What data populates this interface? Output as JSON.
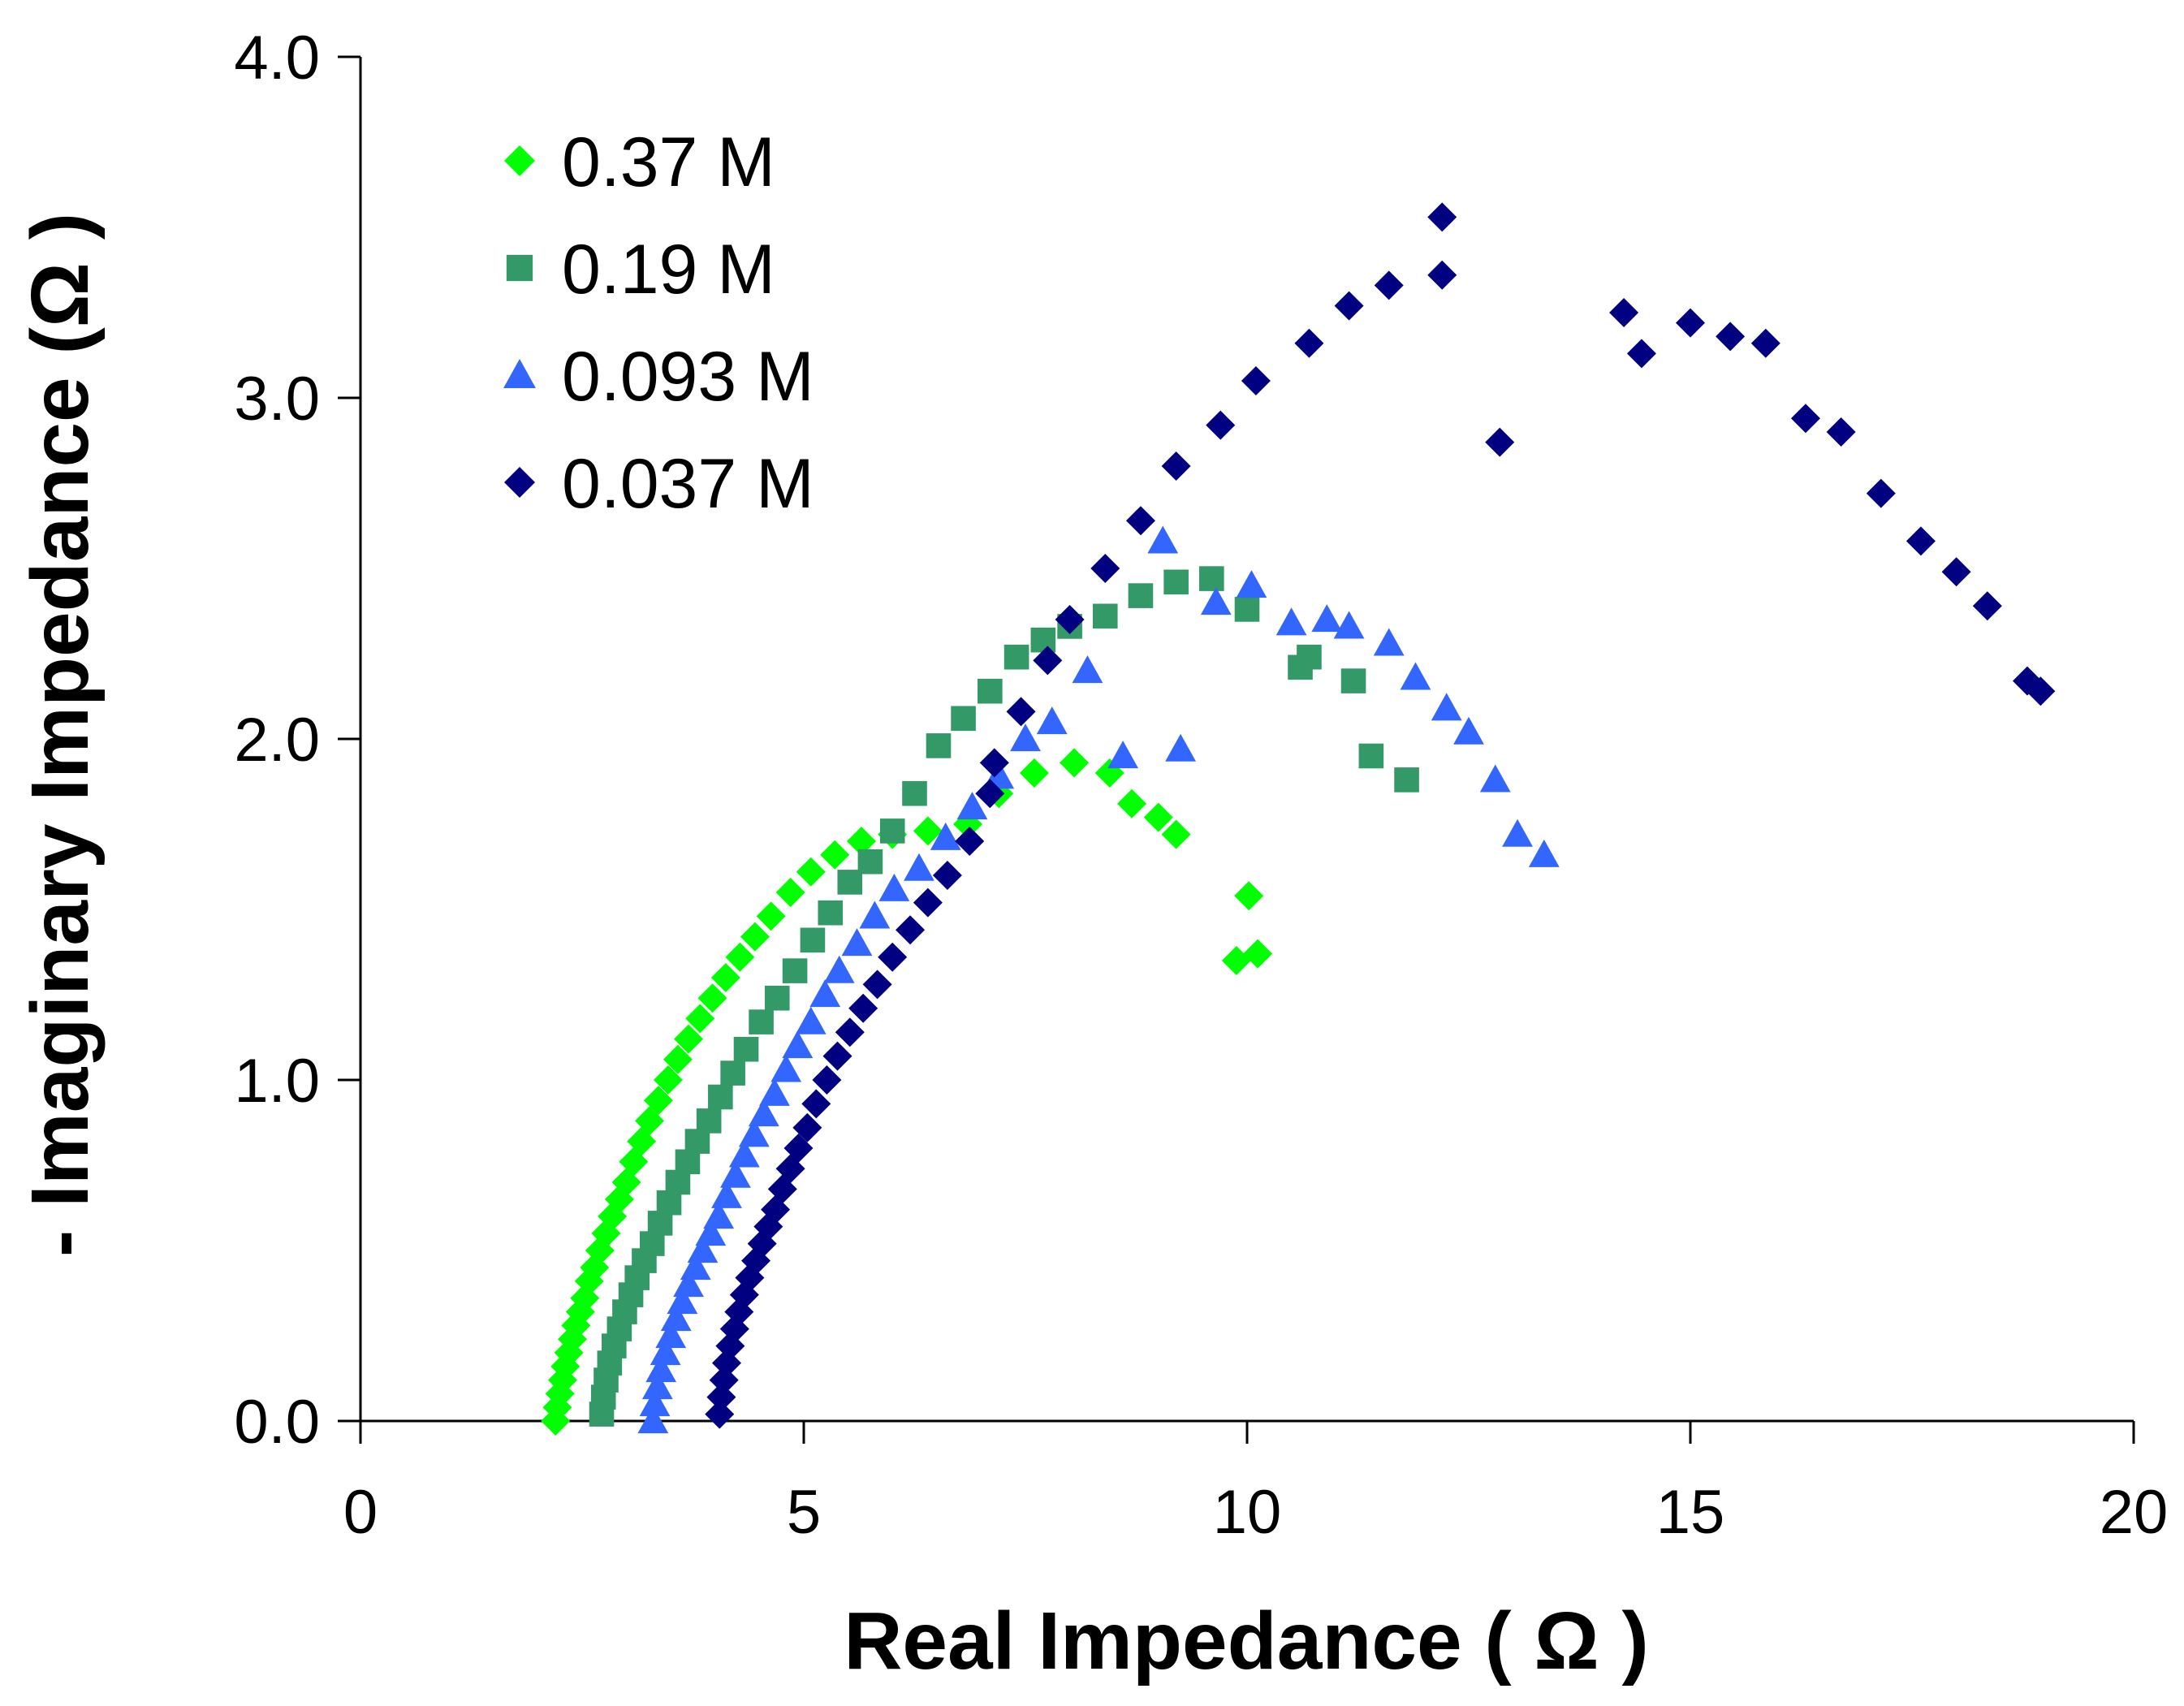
{
  "chart_data": {
    "type": "scatter",
    "title": "",
    "xlabel": "Real Impedance ( Ω )",
    "ylabel": "- Imaginary Impedance (Ω )",
    "xlim": [
      0,
      20
    ],
    "ylim": [
      0,
      4
    ],
    "x_ticks": [
      "0",
      "5",
      "10",
      "15",
      "20"
    ],
    "y_ticks": [
      "0.0",
      "1.0",
      "2.0",
      "3.0",
      "4.0"
    ],
    "grid": false,
    "legend_position": "top-left",
    "series": [
      {
        "name": "0.37 M",
        "marker": "diamond",
        "color": "#00ff00",
        "points": [
          [
            2.2,
            0.0
          ],
          [
            2.22,
            0.04
          ],
          [
            2.25,
            0.08
          ],
          [
            2.28,
            0.12
          ],
          [
            2.31,
            0.16
          ],
          [
            2.35,
            0.2
          ],
          [
            2.39,
            0.24
          ],
          [
            2.43,
            0.28
          ],
          [
            2.48,
            0.32
          ],
          [
            2.53,
            0.36
          ],
          [
            2.58,
            0.41
          ],
          [
            2.64,
            0.45
          ],
          [
            2.7,
            0.5
          ],
          [
            2.77,
            0.55
          ],
          [
            2.84,
            0.6
          ],
          [
            2.92,
            0.65
          ],
          [
            3.0,
            0.7
          ],
          [
            3.08,
            0.76
          ],
          [
            3.17,
            0.82
          ],
          [
            3.26,
            0.88
          ],
          [
            3.36,
            0.94
          ],
          [
            3.47,
            1.0
          ],
          [
            3.58,
            1.06
          ],
          [
            3.7,
            1.12
          ],
          [
            3.83,
            1.18
          ],
          [
            3.97,
            1.24
          ],
          [
            4.12,
            1.3
          ],
          [
            4.28,
            1.36
          ],
          [
            4.45,
            1.42
          ],
          [
            4.63,
            1.48
          ],
          [
            4.85,
            1.55
          ],
          [
            5.08,
            1.61
          ],
          [
            5.35,
            1.66
          ],
          [
            5.65,
            1.7
          ],
          [
            6.0,
            1.72
          ],
          [
            6.4,
            1.73
          ],
          [
            6.85,
            1.75
          ],
          [
            7.2,
            1.84
          ],
          [
            7.6,
            1.9
          ],
          [
            8.05,
            1.93
          ],
          [
            8.45,
            1.9
          ],
          [
            8.7,
            1.81
          ],
          [
            9.0,
            1.77
          ],
          [
            9.2,
            1.72
          ],
          [
            9.88,
            1.35
          ],
          [
            10.12,
            1.37
          ],
          [
            10.02,
            1.54
          ]
        ]
      },
      {
        "name": "0.19 M",
        "marker": "square",
        "color": "#339966",
        "points": [
          [
            2.72,
            0.02
          ],
          [
            2.74,
            0.07
          ],
          [
            2.77,
            0.12
          ],
          [
            2.81,
            0.17
          ],
          [
            2.86,
            0.22
          ],
          [
            2.92,
            0.27
          ],
          [
            2.98,
            0.32
          ],
          [
            3.05,
            0.37
          ],
          [
            3.12,
            0.42
          ],
          [
            3.2,
            0.47
          ],
          [
            3.29,
            0.52
          ],
          [
            3.38,
            0.58
          ],
          [
            3.48,
            0.64
          ],
          [
            3.58,
            0.7
          ],
          [
            3.69,
            0.76
          ],
          [
            3.8,
            0.82
          ],
          [
            3.93,
            0.88
          ],
          [
            4.06,
            0.95
          ],
          [
            4.2,
            1.02
          ],
          [
            4.35,
            1.09
          ],
          [
            4.52,
            1.17
          ],
          [
            4.7,
            1.24
          ],
          [
            4.9,
            1.32
          ],
          [
            5.1,
            1.41
          ],
          [
            5.3,
            1.49
          ],
          [
            5.52,
            1.58
          ],
          [
            5.75,
            1.64
          ],
          [
            6.0,
            1.73
          ],
          [
            6.25,
            1.84
          ],
          [
            6.52,
            1.98
          ],
          [
            6.8,
            2.06
          ],
          [
            7.1,
            2.14
          ],
          [
            7.4,
            2.24
          ],
          [
            7.7,
            2.29
          ],
          [
            8.0,
            2.33
          ],
          [
            8.4,
            2.36
          ],
          [
            8.8,
            2.42
          ],
          [
            9.2,
            2.46
          ],
          [
            9.6,
            2.47
          ],
          [
            10.0,
            2.38
          ],
          [
            10.6,
            2.21
          ],
          [
            10.7,
            2.24
          ],
          [
            11.2,
            2.17
          ],
          [
            11.4,
            1.95
          ],
          [
            11.8,
            1.88
          ]
        ]
      },
      {
        "name": "0.093 M",
        "marker": "triangle",
        "color": "#3366ff",
        "points": [
          [
            3.3,
            0.0
          ],
          [
            3.32,
            0.05
          ],
          [
            3.35,
            0.1
          ],
          [
            3.39,
            0.15
          ],
          [
            3.44,
            0.2
          ],
          [
            3.5,
            0.25
          ],
          [
            3.56,
            0.3
          ],
          [
            3.63,
            0.35
          ],
          [
            3.7,
            0.4
          ],
          [
            3.78,
            0.45
          ],
          [
            3.86,
            0.5
          ],
          [
            3.95,
            0.55
          ],
          [
            4.04,
            0.6
          ],
          [
            4.13,
            0.66
          ],
          [
            4.23,
            0.72
          ],
          [
            4.33,
            0.78
          ],
          [
            4.44,
            0.84
          ],
          [
            4.55,
            0.9
          ],
          [
            4.67,
            0.96
          ],
          [
            4.8,
            1.03
          ],
          [
            4.93,
            1.1
          ],
          [
            5.08,
            1.17
          ],
          [
            5.24,
            1.25
          ],
          [
            5.4,
            1.32
          ],
          [
            5.6,
            1.4
          ],
          [
            5.8,
            1.48
          ],
          [
            6.02,
            1.56
          ],
          [
            6.3,
            1.62
          ],
          [
            6.6,
            1.71
          ],
          [
            6.9,
            1.8
          ],
          [
            7.2,
            1.89
          ],
          [
            7.5,
            2.0
          ],
          [
            7.8,
            2.05
          ],
          [
            8.2,
            2.2
          ],
          [
            8.6,
            1.95
          ],
          [
            9.05,
            2.58
          ],
          [
            9.25,
            1.97
          ],
          [
            9.65,
            2.4
          ],
          [
            10.05,
            2.45
          ],
          [
            10.5,
            2.34
          ],
          [
            10.9,
            2.35
          ],
          [
            11.15,
            2.33
          ],
          [
            11.6,
            2.28
          ],
          [
            11.9,
            2.18
          ],
          [
            12.25,
            2.09
          ],
          [
            12.5,
            2.02
          ],
          [
            12.8,
            1.88
          ],
          [
            13.05,
            1.72
          ],
          [
            13.35,
            1.66
          ]
        ]
      },
      {
        "name": "0.037 M",
        "marker": "diamond",
        "color": "#000080",
        "points": [
          [
            4.05,
            0.02
          ],
          [
            4.07,
            0.07
          ],
          [
            4.1,
            0.12
          ],
          [
            4.13,
            0.17
          ],
          [
            4.17,
            0.22
          ],
          [
            4.22,
            0.27
          ],
          [
            4.27,
            0.32
          ],
          [
            4.33,
            0.37
          ],
          [
            4.39,
            0.42
          ],
          [
            4.46,
            0.47
          ],
          [
            4.53,
            0.52
          ],
          [
            4.6,
            0.57
          ],
          [
            4.68,
            0.62
          ],
          [
            4.76,
            0.68
          ],
          [
            4.85,
            0.74
          ],
          [
            4.94,
            0.8
          ],
          [
            5.04,
            0.86
          ],
          [
            5.14,
            0.93
          ],
          [
            5.26,
            1.0
          ],
          [
            5.38,
            1.07
          ],
          [
            5.52,
            1.14
          ],
          [
            5.67,
            1.21
          ],
          [
            5.83,
            1.28
          ],
          [
            6.0,
            1.36
          ],
          [
            6.2,
            1.44
          ],
          [
            6.4,
            1.52
          ],
          [
            6.62,
            1.6
          ],
          [
            6.87,
            1.7
          ],
          [
            7.1,
            1.84
          ],
          [
            7.15,
            1.93
          ],
          [
            7.45,
            2.08
          ],
          [
            7.75,
            2.23
          ],
          [
            8.0,
            2.35
          ],
          [
            8.4,
            2.5
          ],
          [
            8.8,
            2.64
          ],
          [
            9.2,
            2.8
          ],
          [
            9.7,
            2.92
          ],
          [
            10.1,
            3.05
          ],
          [
            10.7,
            3.16
          ],
          [
            11.15,
            3.27
          ],
          [
            11.6,
            3.33
          ],
          [
            12.2,
            3.36
          ],
          [
            12.2,
            3.53
          ],
          [
            12.85,
            2.87
          ],
          [
            14.25,
            3.25
          ],
          [
            14.45,
            3.13
          ],
          [
            15.0,
            3.22
          ],
          [
            15.45,
            3.18
          ],
          [
            15.85,
            3.16
          ],
          [
            16.3,
            2.94
          ],
          [
            16.7,
            2.9
          ],
          [
            17.15,
            2.72
          ],
          [
            17.6,
            2.58
          ],
          [
            18.0,
            2.49
          ],
          [
            18.35,
            2.39
          ],
          [
            18.8,
            2.17
          ],
          [
            18.95,
            2.14
          ]
        ]
      }
    ]
  }
}
